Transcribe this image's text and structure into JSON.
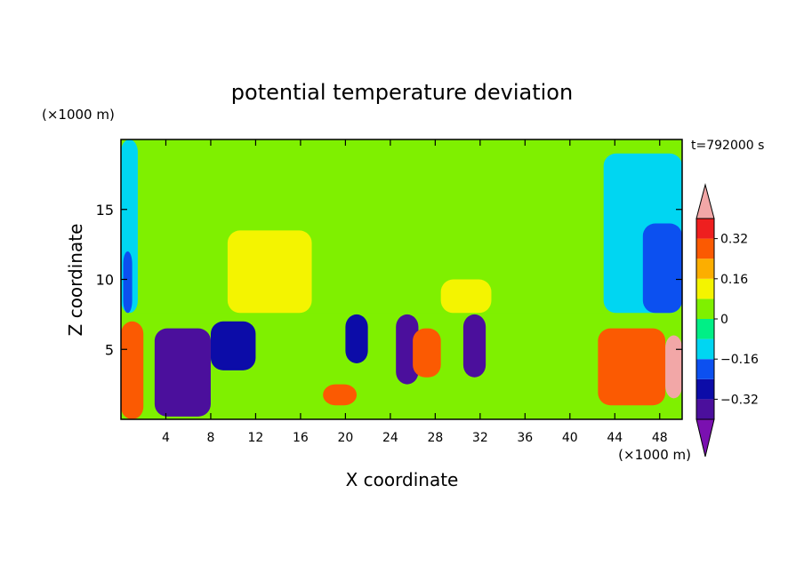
{
  "chart_data": {
    "type": "heatmap",
    "title": "potential temperature deviation",
    "xlabel": "X coordinate",
    "ylabel": "Z coordinate",
    "x_unit": "(×1000 m)",
    "y_unit": "(×1000 m)",
    "time_label": "t=792000 s",
    "xlim": [
      0,
      50
    ],
    "ylim": [
      0,
      20
    ],
    "x_ticks": [
      4,
      8,
      12,
      16,
      20,
      24,
      28,
      32,
      36,
      40,
      44,
      48
    ],
    "y_ticks": [
      5,
      10,
      15
    ],
    "colorbar": {
      "levels": [
        -0.4,
        -0.32,
        -0.24,
        -0.16,
        -0.08,
        0,
        0.08,
        0.16,
        0.24,
        0.32,
        0.4
      ],
      "tick_labels": [
        "0.32",
        "0.16",
        "0",
        "−0.16",
        "−0.32"
      ],
      "tick_values": [
        0.32,
        0.16,
        0,
        -0.16,
        -0.32
      ],
      "colors": [
        "#7a10b0",
        "#4b0f9c",
        "#0c0ca8",
        "#0c50f0",
        "#00d6f2",
        "#00ef86",
        "#7ff000",
        "#f4f400",
        "#fcae00",
        "#fb5a02",
        "#ee1f1f",
        "#f2a7a7"
      ],
      "extend": "both"
    },
    "field_regions": [
      {
        "x0": 0,
        "x1": 50,
        "z0": 7.6,
        "z1": 20,
        "value": 0.03
      },
      {
        "x0": 0,
        "x1": 50,
        "z0": 0,
        "z1": 7.6,
        "value": 0.05
      },
      {
        "x0": 0,
        "x1": 1.5,
        "z0": 7.6,
        "z1": 20,
        "value": -0.13
      },
      {
        "x0": 0.2,
        "x1": 1,
        "z0": 7.6,
        "z1": 12,
        "value": -0.2
      },
      {
        "x0": 43,
        "x1": 50,
        "z0": 7.6,
        "z1": 19,
        "value": -0.1
      },
      {
        "x0": 46.5,
        "x1": 50,
        "z0": 7.6,
        "z1": 14,
        "value": -0.2
      },
      {
        "x0": 9.5,
        "x1": 17,
        "z0": 7.6,
        "z1": 13.5,
        "value": 0.12
      },
      {
        "x0": 28.5,
        "x1": 33,
        "z0": 7.6,
        "z1": 10,
        "value": 0.12
      },
      {
        "x0": 3,
        "x1": 8,
        "z0": 0.2,
        "z1": 6.5,
        "value": -0.36
      },
      {
        "x0": 8,
        "x1": 12,
        "z0": 3.5,
        "z1": 7,
        "value": -0.32
      },
      {
        "x0": 20,
        "x1": 22,
        "z0": 4,
        "z1": 7.5,
        "value": -0.32
      },
      {
        "x0": 24.5,
        "x1": 26.5,
        "z0": 2.5,
        "z1": 7.5,
        "value": -0.34
      },
      {
        "x0": 30.5,
        "x1": 32.5,
        "z0": 3,
        "z1": 7.5,
        "value": -0.38
      },
      {
        "x0": 0,
        "x1": 2,
        "z0": 0,
        "z1": 7,
        "value": 0.3
      },
      {
        "x0": 26,
        "x1": 28.5,
        "z0": 3,
        "z1": 6.5,
        "value": 0.3
      },
      {
        "x0": 18,
        "x1": 21,
        "z0": 1,
        "z1": 2.5,
        "value": 0.3
      },
      {
        "x0": 42.5,
        "x1": 48.5,
        "z0": 1,
        "z1": 6.5,
        "value": 0.25
      },
      {
        "x0": 48.5,
        "x1": 50,
        "z0": 1.5,
        "z1": 6,
        "value": 0.4
      }
    ]
  }
}
